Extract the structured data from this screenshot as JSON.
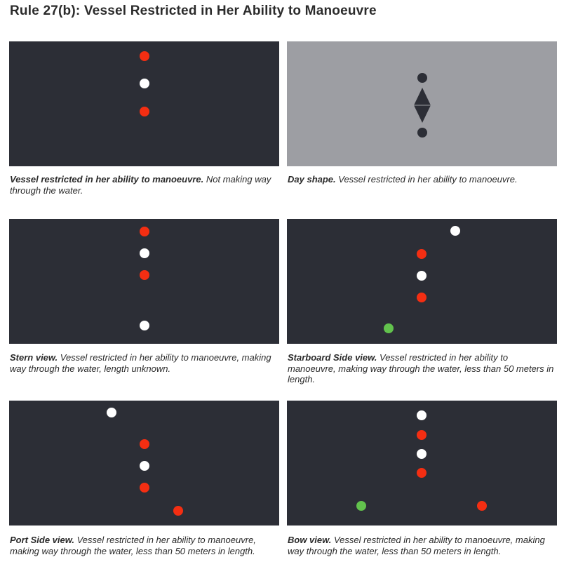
{
  "title": "Rule 27(b): Vessel Restricted in Her Ability to Manoeuvre",
  "colors": {
    "panel_dark": "#2c2e36",
    "panel_grey": "#9d9ea3",
    "red_light": "#f42e12",
    "white_light": "#ffffff",
    "green_light": "#62c24d"
  },
  "panels": [
    {
      "bold": "Vessel restricted in her ability to manoeuvre.",
      "text": " Not making way through the water.",
      "lights": [
        "red",
        "white",
        "red"
      ]
    },
    {
      "bold": "Day shape.",
      "text": " Vessel restricted in her ability to manoeuvre.",
      "day_shape": [
        "ball",
        "diamond",
        "ball"
      ]
    },
    {
      "bold": "Stern view.",
      "text": " Vessel restricted in her ability to manoeuvre, making way through the water, length unknown.",
      "lights": [
        "red",
        "white",
        "red",
        "white"
      ]
    },
    {
      "bold": "Starboard Side view.",
      "text": " Vessel restricted in her ability to manoeuvre, making way through the water, less than 50 meters in length.",
      "lights": [
        "white",
        "red",
        "white",
        "red",
        "green"
      ]
    },
    {
      "bold": "Port Side view.",
      "text": " Vessel restricted in her ability to manoeuvre, making way through the water, less than 50 meters in length.",
      "lights": [
        "white",
        "red",
        "white",
        "red",
        "red"
      ]
    },
    {
      "bold": "Bow view.",
      "text": " Vessel restricted in her ability to manoeuvre, making way through the water, less than 50 meters in length.",
      "lights": [
        "white",
        "red",
        "white",
        "red",
        "green",
        "red"
      ]
    }
  ]
}
